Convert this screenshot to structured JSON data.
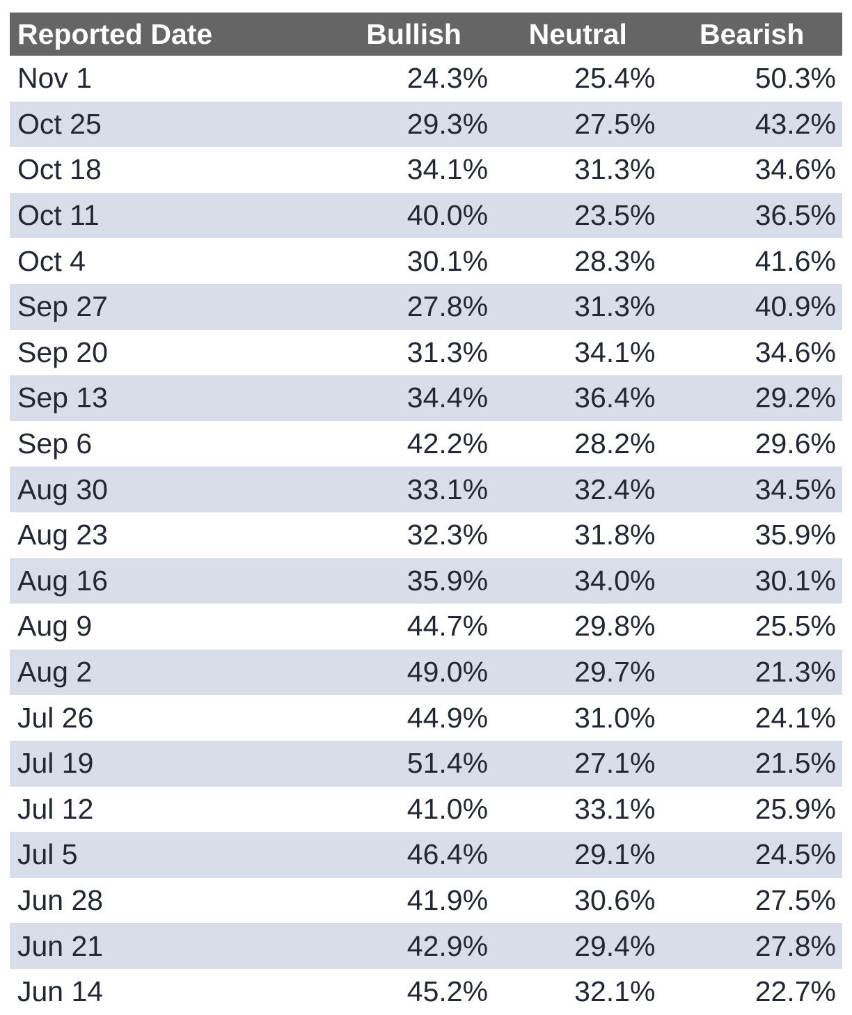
{
  "colors": {
    "header_bg": "#656565",
    "header_text": "#ffffff",
    "stripe_bg": "#d8dde9",
    "row_bg": "#ffffff",
    "body_text": "#222733"
  },
  "chart_data": {
    "type": "table",
    "columns": [
      "Reported Date",
      "Bullish",
      "Neutral",
      "Bearish"
    ],
    "value_format": "percent_one_decimal",
    "rows": [
      {
        "date": "Nov 1",
        "bullish": 24.3,
        "neutral": 25.4,
        "bearish": 50.3
      },
      {
        "date": "Oct 25",
        "bullish": 29.3,
        "neutral": 27.5,
        "bearish": 43.2
      },
      {
        "date": "Oct 18",
        "bullish": 34.1,
        "neutral": 31.3,
        "bearish": 34.6
      },
      {
        "date": "Oct 11",
        "bullish": 40.0,
        "neutral": 23.5,
        "bearish": 36.5
      },
      {
        "date": "Oct 4",
        "bullish": 30.1,
        "neutral": 28.3,
        "bearish": 41.6
      },
      {
        "date": "Sep 27",
        "bullish": 27.8,
        "neutral": 31.3,
        "bearish": 40.9
      },
      {
        "date": "Sep 20",
        "bullish": 31.3,
        "neutral": 34.1,
        "bearish": 34.6
      },
      {
        "date": "Sep 13",
        "bullish": 34.4,
        "neutral": 36.4,
        "bearish": 29.2
      },
      {
        "date": "Sep 6",
        "bullish": 42.2,
        "neutral": 28.2,
        "bearish": 29.6
      },
      {
        "date": "Aug 30",
        "bullish": 33.1,
        "neutral": 32.4,
        "bearish": 34.5
      },
      {
        "date": "Aug 23",
        "bullish": 32.3,
        "neutral": 31.8,
        "bearish": 35.9
      },
      {
        "date": "Aug 16",
        "bullish": 35.9,
        "neutral": 34.0,
        "bearish": 30.1
      },
      {
        "date": "Aug 9",
        "bullish": 44.7,
        "neutral": 29.8,
        "bearish": 25.5
      },
      {
        "date": "Aug 2",
        "bullish": 49.0,
        "neutral": 29.7,
        "bearish": 21.3
      },
      {
        "date": "Jul 26",
        "bullish": 44.9,
        "neutral": 31.0,
        "bearish": 24.1
      },
      {
        "date": "Jul 19",
        "bullish": 51.4,
        "neutral": 27.1,
        "bearish": 21.5
      },
      {
        "date": "Jul 12",
        "bullish": 41.0,
        "neutral": 33.1,
        "bearish": 25.9
      },
      {
        "date": "Jul 5",
        "bullish": 46.4,
        "neutral": 29.1,
        "bearish": 24.5
      },
      {
        "date": "Jun 28",
        "bullish": 41.9,
        "neutral": 30.6,
        "bearish": 27.5
      },
      {
        "date": "Jun 21",
        "bullish": 42.9,
        "neutral": 29.4,
        "bearish": 27.8
      },
      {
        "date": "Jun 14",
        "bullish": 45.2,
        "neutral": 32.1,
        "bearish": 22.7
      }
    ]
  }
}
